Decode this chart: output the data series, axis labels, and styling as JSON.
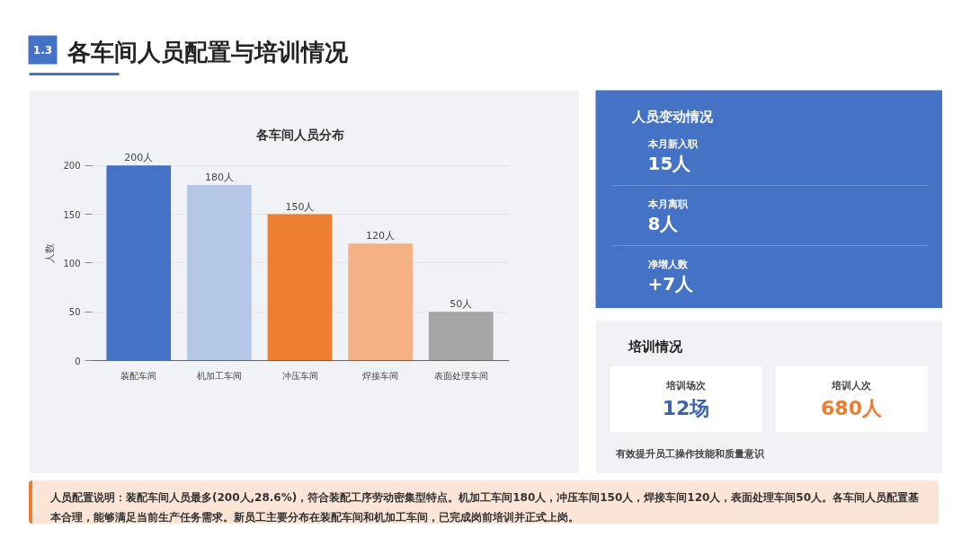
{
  "chart_data": [
    {
      "type": "other",
      "title": "各车间人员配置与培训情况",
      "annotations": [
        "1.3"
      ]
    },
    {
      "type": "bar",
      "title": "各车间人员分布",
      "ylabel": "人数",
      "categories": [
        "装配车间",
        "机加工车间",
        "冲压车间",
        "焊接车间",
        "表面处理车间"
      ],
      "values": [
        200,
        180,
        150,
        120,
        50
      ],
      "colors": [
        "#4472c4",
        "#b4c7e7",
        "#ed7d31",
        "#f4b183",
        "#a5a5a5"
      ],
      "value_labels": [
        "200人",
        "180人",
        "150人",
        "120人",
        "50人"
      ],
      "ylim": [
        0,
        220
      ],
      "yticks": [
        0,
        50,
        100,
        150,
        200
      ],
      "grid": "y"
    },
    {
      "type": "other",
      "title": "人员变动情况",
      "annotations": [
        "本月新入职",
        "15人",
        "本月离职",
        "8人",
        "净增人数",
        "+7人"
      ]
    },
    {
      "type": "other",
      "title": "培训情况",
      "annotations": [
        "培训场次",
        "12场",
        "培训人次",
        "680人",
        "有效提升员工操作技能和质量意识"
      ]
    },
    {
      "type": "other",
      "annotations": [
        "人员配置说明：装配车间人员最多(200人,28.6%)，符合装配工序劳动密集型特点。机加工车间180人，冲压车间150人，焊接车间120人，表面处理车间50人。各车间人员配置基本合理，能够满足当前生产任务需求。新员工主要分布在装配车间和机加工车间，已完成岗前培训并正式上岗。"
      ]
    }
  ]
}
